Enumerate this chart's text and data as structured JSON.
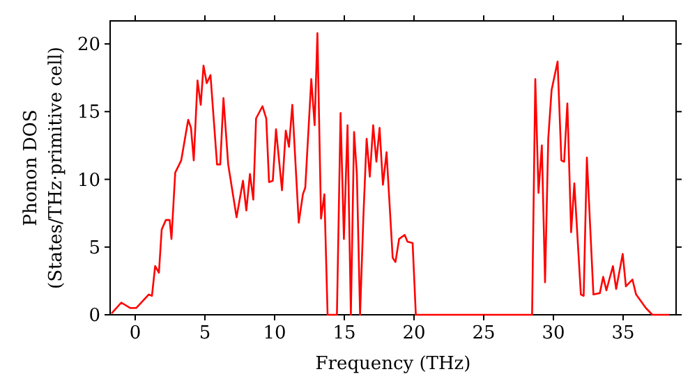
{
  "chart_data": {
    "type": "line",
    "xlabel": "Frequency (THz)",
    "ylabel": "Phonon DOS\n(States/THz·primitive cell)",
    "xlim": [
      -1.8,
      38.8
    ],
    "ylim": [
      0,
      21.7
    ],
    "xticks": [
      0,
      5,
      10,
      15,
      20,
      25,
      30,
      35
    ],
    "yticks": [
      0,
      5,
      10,
      15,
      20
    ],
    "line_style": "solid",
    "series": [
      {
        "color": "#ff0000",
        "x": [
          -1.7,
          -1.0,
          -0.35,
          0.07,
          0.97,
          1.2,
          1.43,
          1.7,
          1.9,
          2.2,
          2.47,
          2.6,
          2.87,
          3.3,
          3.8,
          4.0,
          4.2,
          4.47,
          4.7,
          4.9,
          5.13,
          5.4,
          5.87,
          6.1,
          6.33,
          6.67,
          7.27,
          7.73,
          7.97,
          8.23,
          8.47,
          8.67,
          9.13,
          9.4,
          9.6,
          9.87,
          10.1,
          10.53,
          10.8,
          11.03,
          11.27,
          11.73,
          12.03,
          12.2,
          12.63,
          12.87,
          13.07,
          13.33,
          13.57,
          13.8,
          14.47,
          14.73,
          14.97,
          15.23,
          15.47,
          15.7,
          15.9,
          16.13,
          16.37,
          16.6,
          16.83,
          17.07,
          17.3,
          17.53,
          17.77,
          18.03,
          18.47,
          18.67,
          18.93,
          19.33,
          19.53,
          19.9,
          20.13,
          28.47,
          28.7,
          28.93,
          29.17,
          29.4,
          29.63,
          29.87,
          30.3,
          30.57,
          30.77,
          31.0,
          31.27,
          31.5,
          31.97,
          32.17,
          32.4,
          32.87,
          33.33,
          33.57,
          33.8,
          34.27,
          34.5,
          34.97,
          35.2,
          35.67,
          35.93,
          36.63,
          37.1,
          38.3
        ],
        "values": [
          0.1,
          0.9,
          0.5,
          0.5,
          1.5,
          1.4,
          3.6,
          3.1,
          6.3,
          7.0,
          7.0,
          5.6,
          10.5,
          11.4,
          14.4,
          13.8,
          11.4,
          17.3,
          15.5,
          18.4,
          17.1,
          17.7,
          11.1,
          11.1,
          16.0,
          11.1,
          7.2,
          9.9,
          7.7,
          10.4,
          8.5,
          14.5,
          15.4,
          14.5,
          9.8,
          9.9,
          13.7,
          9.2,
          13.6,
          12.4,
          15.5,
          6.8,
          8.9,
          9.4,
          17.4,
          14.0,
          20.8,
          7.1,
          8.9,
          0,
          0,
          14.9,
          5.6,
          14.0,
          0,
          13.5,
          10.4,
          0,
          7.3,
          13.0,
          10.2,
          14.0,
          11.3,
          13.8,
          9.6,
          12.0,
          4.2,
          3.9,
          5.6,
          5.9,
          5.4,
          5.3,
          0,
          0,
          17.4,
          9.0,
          12.5,
          2.4,
          13.0,
          16.6,
          18.7,
          11.4,
          11.3,
          15.6,
          6.1,
          9.7,
          1.5,
          1.4,
          11.6,
          1.5,
          1.6,
          2.8,
          1.8,
          3.6,
          1.9,
          4.5,
          2.1,
          2.6,
          1.5,
          0.5,
          0,
          0
        ]
      }
    ]
  }
}
